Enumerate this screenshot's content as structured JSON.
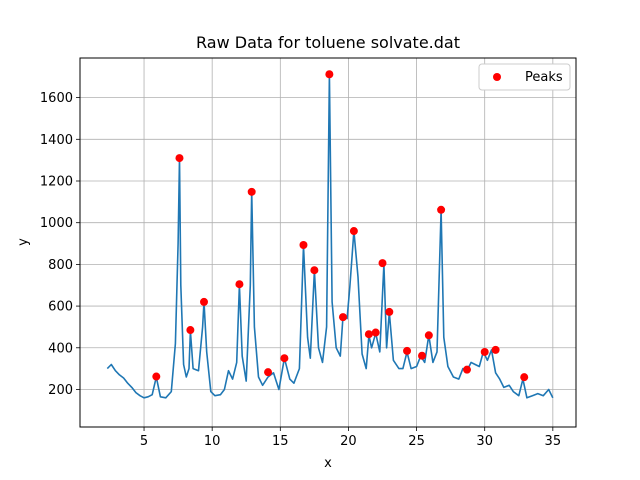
{
  "chart_data": {
    "type": "line",
    "title": "Raw Data for toluene solvate.dat",
    "xlabel": "x",
    "ylabel": "y",
    "xlim": [
      0.3,
      36.7
    ],
    "ylim": [
      20,
      1790
    ],
    "xticks": [
      5,
      10,
      15,
      20,
      25,
      30,
      35
    ],
    "yticks": [
      200,
      400,
      600,
      800,
      1000,
      1200,
      1400,
      1600
    ],
    "grid": true,
    "legend_position": "top-right",
    "series": [
      {
        "kind": "line",
        "color": "#1f77b4",
        "x": [
          2.3,
          2.6,
          2.9,
          3.2,
          3.5,
          3.8,
          4.1,
          4.4,
          4.7,
          5.0,
          5.3,
          5.6,
          5.9,
          6.2,
          6.6,
          7.0,
          7.3,
          7.5,
          7.6,
          7.7,
          7.9,
          8.1,
          8.3,
          8.4,
          8.6,
          9.0,
          9.3,
          9.4,
          9.6,
          9.9,
          10.2,
          10.6,
          10.9,
          11.2,
          11.5,
          11.8,
          12.0,
          12.2,
          12.5,
          12.8,
          12.9,
          13.1,
          13.4,
          13.7,
          14.1,
          14.5,
          14.9,
          15.3,
          15.7,
          16.0,
          16.4,
          16.7,
          17.0,
          17.2,
          17.5,
          17.8,
          18.1,
          18.4,
          18.6,
          18.8,
          19.1,
          19.4,
          19.6,
          19.9,
          20.1,
          20.4,
          20.7,
          21.0,
          21.3,
          21.5,
          21.7,
          22.0,
          22.3,
          22.6,
          22.8,
          23.0,
          23.3,
          23.7,
          24.0,
          24.3,
          24.6,
          25.0,
          25.3,
          25.6,
          25.9,
          26.2,
          26.5,
          26.8,
          27.0,
          27.3,
          27.7,
          28.1,
          28.4,
          28.7,
          29.0,
          29.3,
          29.6,
          29.9,
          30.2,
          30.5,
          30.8,
          31.1,
          31.4,
          31.8,
          32.1,
          32.5,
          32.8,
          33.1,
          33.5,
          33.9,
          34.3,
          34.7,
          35.0
        ],
        "y": [
          300,
          320,
          290,
          270,
          255,
          230,
          210,
          185,
          170,
          160,
          165,
          175,
          260,
          165,
          160,
          190,
          420,
          900,
          1310,
          700,
          320,
          260,
          300,
          480,
          300,
          290,
          500,
          620,
          380,
          190,
          170,
          175,
          200,
          290,
          250,
          330,
          700,
          360,
          240,
          700,
          1150,
          500,
          260,
          220,
          260,
          280,
          200,
          350,
          250,
          230,
          300,
          890,
          450,
          350,
          770,
          400,
          330,
          500,
          1710,
          620,
          400,
          360,
          550,
          540,
          690,
          960,
          740,
          370,
          300,
          460,
          400,
          470,
          380,
          800,
          400,
          570,
          340,
          300,
          300,
          380,
          300,
          310,
          360,
          330,
          460,
          330,
          380,
          1060,
          450,
          310,
          260,
          250,
          300,
          290,
          330,
          320,
          310,
          380,
          340,
          390,
          280,
          250,
          210,
          220,
          190,
          170,
          250,
          160,
          170,
          180,
          170,
          200,
          160
        ]
      },
      {
        "kind": "markers",
        "name": "Peaks",
        "color": "#ff0000",
        "x": [
          5.9,
          7.6,
          8.4,
          9.4,
          12.0,
          12.9,
          14.1,
          15.3,
          16.7,
          17.5,
          18.6,
          19.6,
          20.4,
          21.5,
          22.0,
          22.5,
          23.0,
          24.3,
          25.4,
          25.9,
          26.8,
          28.7,
          30.0,
          30.8,
          32.9
        ],
        "y": [
          262,
          1310,
          485,
          620,
          705,
          1148,
          283,
          350,
          893,
          772,
          1712,
          547,
          960,
          465,
          473,
          806,
          572,
          385,
          362,
          460,
          1062,
          295,
          380,
          390,
          259
        ]
      }
    ]
  }
}
